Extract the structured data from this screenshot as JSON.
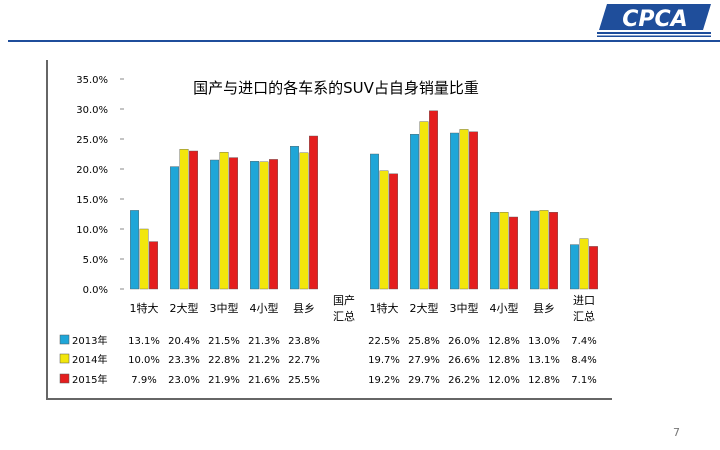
{
  "logo_text": "CPCA",
  "page_number": "7",
  "colors": {
    "s2013": "#1fa6d8",
    "s2014": "#f2e60c",
    "s2015": "#e41e1e",
    "brand": "#1f4e9b"
  },
  "chart_data": {
    "type": "bar",
    "title": "国产与进口的各车系的SUV占自身销量比重",
    "ylim": [
      0,
      35
    ],
    "yticks": [
      "35.0%",
      "30.0%",
      "25.0%",
      "20.0%",
      "15.0%",
      "10.0%",
      "5.0%",
      "0.0%"
    ],
    "ytick_values": [
      35,
      30,
      25,
      20,
      15,
      10,
      5,
      0
    ],
    "grid": false,
    "legend": "bottom-table",
    "categories": [
      "1特大",
      "2大型",
      "3中型",
      "4小型",
      "县乡",
      "国产\n汇总",
      "1特大",
      "2大型",
      "3中型",
      "4小型",
      "县乡",
      "进口\n汇总"
    ],
    "series": [
      {
        "name": "2013年",
        "values": [
          13.1,
          20.4,
          21.5,
          21.3,
          23.8,
          null,
          22.5,
          25.8,
          26.0,
          12.8,
          13.0,
          7.4
        ],
        "labels": [
          "13.1%",
          "20.4%",
          "21.5%",
          "21.3%",
          "23.8%",
          "",
          "22.5%",
          "25.8%",
          "26.0%",
          "12.8%",
          "13.0%",
          "7.4%"
        ]
      },
      {
        "name": "2014年",
        "values": [
          10.0,
          23.3,
          22.8,
          21.2,
          22.7,
          null,
          19.7,
          27.9,
          26.6,
          12.8,
          13.1,
          8.4
        ],
        "labels": [
          "10.0%",
          "23.3%",
          "22.8%",
          "21.2%",
          "22.7%",
          "",
          "19.7%",
          "27.9%",
          "26.6%",
          "12.8%",
          "13.1%",
          "8.4%"
        ]
      },
      {
        "name": "2015年",
        "values": [
          7.9,
          23.0,
          21.9,
          21.6,
          25.5,
          null,
          19.2,
          29.7,
          26.2,
          12.0,
          12.8,
          7.1
        ],
        "labels": [
          "7.9%",
          "23.0%",
          "21.9%",
          "21.6%",
          "25.5%",
          "",
          "19.2%",
          "29.7%",
          "26.2%",
          "12.0%",
          "12.8%",
          "7.1%"
        ]
      }
    ]
  }
}
